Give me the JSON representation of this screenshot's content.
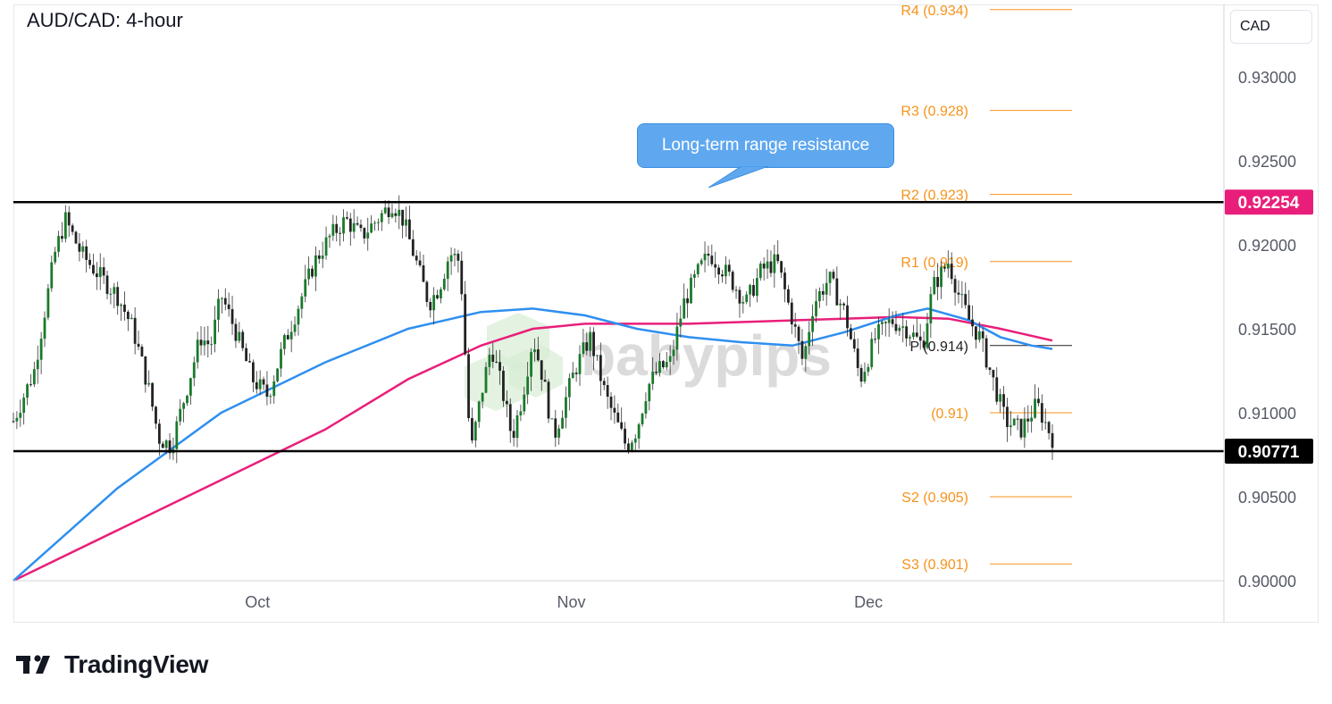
{
  "title": "AUD/CAD: 4-hour",
  "currency_button": "CAD",
  "callout": "Long-term range resistance",
  "brand": {
    "name": "TradingView",
    "watermark": "babypips"
  },
  "colors": {
    "pivot": "#f7931a",
    "ma_fast": "#2f8ff0",
    "ma_slow": "#e91e7a",
    "price_badge": "#e91e7a",
    "support_badge": "#000000",
    "candle_up": "#1a7a2a",
    "candle_down": "#222222"
  },
  "chart_data": {
    "type": "candlestick",
    "ylim": [
      0.9,
      0.9345
    ],
    "y_ticks": [
      "0.90000",
      "0.90500",
      "0.91000",
      "0.91500",
      "0.92000",
      "0.92500",
      "0.93000"
    ],
    "x_ticks": [
      {
        "label": "Oct",
        "t": 0.235
      },
      {
        "label": "Nov",
        "t": 0.537
      },
      {
        "label": "Dec",
        "t": 0.823
      }
    ],
    "pivot_levels": [
      {
        "label": "R4 (0.934)",
        "value": 0.934
      },
      {
        "label": "R3 (0.928)",
        "value": 0.928
      },
      {
        "label": "R2 (0.923)",
        "value": 0.923
      },
      {
        "label": "R1 (0.919)",
        "value": 0.919
      },
      {
        "label": "P (0.914)",
        "value": 0.914
      },
      {
        "label": "(0.91)",
        "value": 0.91
      },
      {
        "label": "S2 (0.905)",
        "value": 0.905
      },
      {
        "label": "S3 (0.901)",
        "value": 0.901
      }
    ],
    "horizontal_lines": [
      {
        "name": "resistance",
        "value": 0.92254,
        "label": "0.92254"
      },
      {
        "name": "support",
        "value": 0.90771,
        "label": "0.90771"
      }
    ],
    "price_path": [
      [
        0.0,
        0.9095
      ],
      [
        0.02,
        0.9125
      ],
      [
        0.04,
        0.9195
      ],
      [
        0.05,
        0.9215
      ],
      [
        0.065,
        0.9195
      ],
      [
        0.085,
        0.918
      ],
      [
        0.1,
        0.917
      ],
      [
        0.115,
        0.915
      ],
      [
        0.13,
        0.9115
      ],
      [
        0.14,
        0.9085
      ],
      [
        0.152,
        0.908
      ],
      [
        0.165,
        0.911
      ],
      [
        0.18,
        0.9145
      ],
      [
        0.19,
        0.914
      ],
      [
        0.2,
        0.917
      ],
      [
        0.213,
        0.915
      ],
      [
        0.23,
        0.912
      ],
      [
        0.245,
        0.911
      ],
      [
        0.26,
        0.914
      ],
      [
        0.275,
        0.9165
      ],
      [
        0.29,
        0.919
      ],
      [
        0.305,
        0.9205
      ],
      [
        0.32,
        0.9215
      ],
      [
        0.335,
        0.9205
      ],
      [
        0.35,
        0.9215
      ],
      [
        0.365,
        0.9225
      ],
      [
        0.375,
        0.9215
      ],
      [
        0.39,
        0.9185
      ],
      [
        0.4,
        0.9165
      ],
      [
        0.41,
        0.9175
      ],
      [
        0.42,
        0.9195
      ],
      [
        0.43,
        0.919
      ],
      [
        0.437,
        0.911
      ],
      [
        0.44,
        0.9075
      ],
      [
        0.45,
        0.911
      ],
      [
        0.46,
        0.914
      ],
      [
        0.47,
        0.9115
      ],
      [
        0.48,
        0.9085
      ],
      [
        0.49,
        0.911
      ],
      [
        0.5,
        0.9145
      ],
      [
        0.51,
        0.912
      ],
      [
        0.52,
        0.9085
      ],
      [
        0.53,
        0.9105
      ],
      [
        0.54,
        0.9125
      ],
      [
        0.555,
        0.9145
      ],
      [
        0.57,
        0.911
      ],
      [
        0.58,
        0.9095
      ],
      [
        0.59,
        0.908
      ],
      [
        0.6,
        0.909
      ],
      [
        0.61,
        0.9115
      ],
      [
        0.62,
        0.9125
      ],
      [
        0.632,
        0.913
      ],
      [
        0.645,
        0.9165
      ],
      [
        0.66,
        0.9185
      ],
      [
        0.67,
        0.9195
      ],
      [
        0.69,
        0.918
      ],
      [
        0.705,
        0.9165
      ],
      [
        0.72,
        0.9185
      ],
      [
        0.735,
        0.919
      ],
      [
        0.75,
        0.9155
      ],
      [
        0.76,
        0.913
      ],
      [
        0.77,
        0.9165
      ],
      [
        0.785,
        0.918
      ],
      [
        0.8,
        0.916
      ],
      [
        0.815,
        0.912
      ],
      [
        0.83,
        0.9145
      ],
      [
        0.845,
        0.9155
      ],
      [
        0.86,
        0.915
      ],
      [
        0.875,
        0.914
      ],
      [
        0.885,
        0.9175
      ],
      [
        0.9,
        0.919
      ],
      [
        0.91,
        0.917
      ],
      [
        0.92,
        0.9155
      ],
      [
        0.93,
        0.9145
      ],
      [
        0.94,
        0.9125
      ],
      [
        0.955,
        0.9095
      ],
      [
        0.97,
        0.909
      ],
      [
        0.985,
        0.9105
      ],
      [
        1.0,
        0.9085
      ]
    ],
    "ma_fast": [
      [
        0.0,
        0.9
      ],
      [
        0.1,
        0.9055
      ],
      [
        0.2,
        0.91
      ],
      [
        0.3,
        0.913
      ],
      [
        0.38,
        0.915
      ],
      [
        0.45,
        0.916
      ],
      [
        0.5,
        0.9162
      ],
      [
        0.55,
        0.9158
      ],
      [
        0.6,
        0.915
      ],
      [
        0.65,
        0.9145
      ],
      [
        0.7,
        0.9142
      ],
      [
        0.75,
        0.914
      ],
      [
        0.8,
        0.9148
      ],
      [
        0.85,
        0.9158
      ],
      [
        0.88,
        0.9162
      ],
      [
        0.92,
        0.9155
      ],
      [
        0.95,
        0.9145
      ],
      [
        0.98,
        0.914
      ],
      [
        1.0,
        0.9138
      ]
    ],
    "ma_slow": [
      [
        0.0,
        0.9
      ],
      [
        0.1,
        0.903
      ],
      [
        0.2,
        0.906
      ],
      [
        0.3,
        0.909
      ],
      [
        0.38,
        0.912
      ],
      [
        0.45,
        0.914
      ],
      [
        0.5,
        0.915
      ],
      [
        0.55,
        0.9153
      ],
      [
        0.6,
        0.9153
      ],
      [
        0.65,
        0.9153
      ],
      [
        0.7,
        0.9154
      ],
      [
        0.75,
        0.9155
      ],
      [
        0.8,
        0.9156
      ],
      [
        0.85,
        0.9157
      ],
      [
        0.9,
        0.9156
      ],
      [
        0.95,
        0.915
      ],
      [
        1.0,
        0.9143
      ]
    ]
  }
}
